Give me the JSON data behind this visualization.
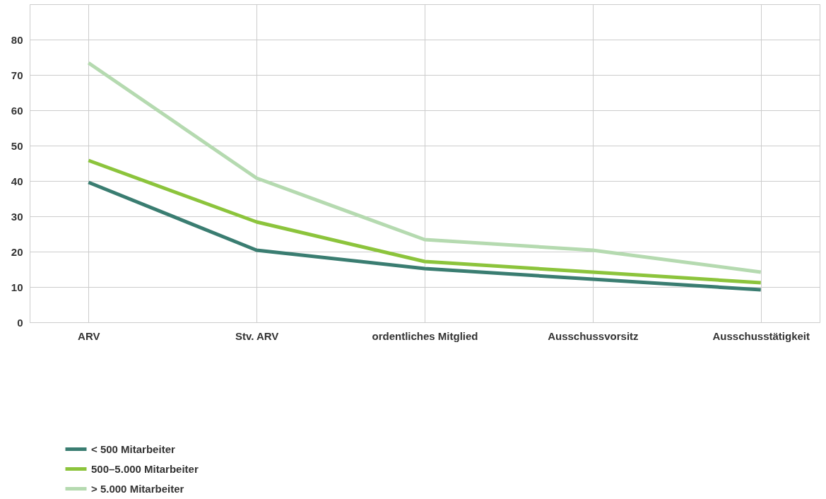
{
  "chart_data": {
    "type": "line",
    "categories": [
      "ARV",
      "Stv. ARV",
      "ordentliches Mitglied",
      "Ausschussvorsitz",
      "Ausschusstätigkeit"
    ],
    "series": [
      {
        "name": "< 500 Mitarbeiter",
        "color": "#3a7d71",
        "values": [
          39.6,
          20.4,
          15.2,
          12.2,
          9.2
        ]
      },
      {
        "name": "500–5.000 Mitarbeiter",
        "color": "#8cc43c",
        "values": [
          45.8,
          28.4,
          17.2,
          14.2,
          11.2
        ]
      },
      {
        "name": "> 5.000 Mitarbeiter",
        "color": "#b5dab0",
        "values": [
          73.4,
          40.8,
          23.4,
          20.4,
          14.2
        ]
      }
    ],
    "ylim": [
      0,
      90
    ],
    "yticks": [
      0,
      10,
      20,
      30,
      40,
      50,
      60,
      70,
      80,
      {
        "value": 90,
        "label": null
      }
    ],
    "grid": true,
    "legend": "bottom",
    "marker": "none",
    "line_style": "solid"
  }
}
